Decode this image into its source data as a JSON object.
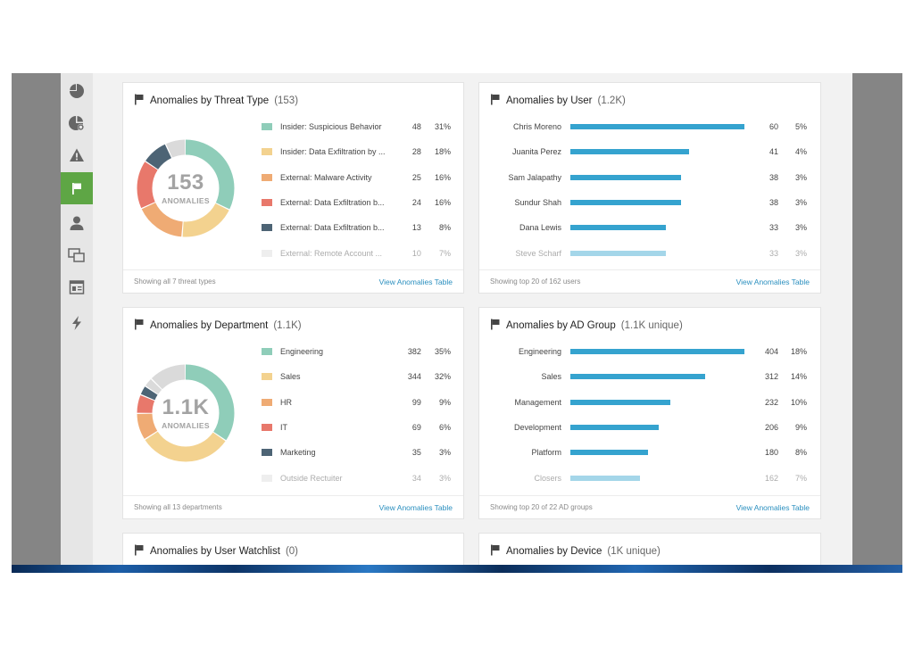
{
  "sidebar": {
    "items": [
      {
        "icon": "pie-chart-icon",
        "active": false
      },
      {
        "icon": "pie-settings-icon",
        "active": false
      },
      {
        "icon": "warning-icon",
        "active": false
      },
      {
        "icon": "flag-icon",
        "active": true
      },
      {
        "icon": "user-icon",
        "active": false
      },
      {
        "icon": "windows-icon",
        "active": false
      },
      {
        "icon": "report-icon",
        "active": false
      },
      {
        "icon": "lightning-icon",
        "active": false
      }
    ],
    "active_color": "#5ea645"
  },
  "cards": {
    "threat": {
      "title": "Anomalies by Threat Type",
      "count": "(153)",
      "center_value": "153",
      "center_label": "ANOMALIES",
      "rows": [
        {
          "label": "Insider: Suspicious Behavior",
          "value": "48",
          "pct": "31%",
          "color": "#8fcdb9"
        },
        {
          "label": "Insider: Data Exfiltration by ...",
          "value": "28",
          "pct": "18%",
          "color": "#f3d28f"
        },
        {
          "label": "External: Malware Activity",
          "value": "25",
          "pct": "16%",
          "color": "#efab74"
        },
        {
          "label": "External: Data Exfiltration b...",
          "value": "24",
          "pct": "16%",
          "color": "#e8786b"
        },
        {
          "label": "External: Data Exfiltration b...",
          "value": "13",
          "pct": "8%",
          "color": "#4d6475"
        },
        {
          "label": "External: Remote Account ...",
          "value": "10",
          "pct": "7%",
          "color": "#dadada"
        }
      ],
      "footer": "Showing all 7 threat types",
      "link": "View Anomalies Table"
    },
    "user": {
      "title": "Anomalies by User",
      "count": "(1.2K)",
      "rows": [
        {
          "label": "Chris Moreno",
          "value": "60",
          "pct": "5%"
        },
        {
          "label": "Juanita Perez",
          "value": "41",
          "pct": "4%"
        },
        {
          "label": "Sam Jalapathy",
          "value": "38",
          "pct": "3%"
        },
        {
          "label": "Sundur Shah",
          "value": "38",
          "pct": "3%"
        },
        {
          "label": "Dana Lewis",
          "value": "33",
          "pct": "3%"
        },
        {
          "label": "Steve Scharf",
          "value": "33",
          "pct": "3%"
        }
      ],
      "bar_color": "#35a3cf",
      "footer": "Showing top 20 of 162 users",
      "link": "View Anomalies Table"
    },
    "department": {
      "title": "Anomalies by Department",
      "count": "(1.1K)",
      "center_value": "1.1K",
      "center_label": "ANOMALIES",
      "rows": [
        {
          "label": "Engineering",
          "value": "382",
          "pct": "35%",
          "color": "#8fcdb9"
        },
        {
          "label": "Sales",
          "value": "344",
          "pct": "32%",
          "color": "#f3d28f"
        },
        {
          "label": "HR",
          "value": "99",
          "pct": "9%",
          "color": "#efab74"
        },
        {
          "label": "IT",
          "value": "69",
          "pct": "6%",
          "color": "#e8786b"
        },
        {
          "label": "Marketing",
          "value": "35",
          "pct": "3%",
          "color": "#4d6475"
        },
        {
          "label": "Outside Rectuiter",
          "value": "34",
          "pct": "3%",
          "color": "#dadada"
        }
      ],
      "remainder_color": "#dadada",
      "footer": "Showing all 13 departments",
      "link": "View Anomalies Table"
    },
    "adgroup": {
      "title": "Anomalies by AD Group",
      "count": "(1.1K unique)",
      "rows": [
        {
          "label": "Engineering",
          "value": "404",
          "pct": "18%"
        },
        {
          "label": "Sales",
          "value": "312",
          "pct": "14%"
        },
        {
          "label": "Management",
          "value": "232",
          "pct": "10%"
        },
        {
          "label": "Development",
          "value": "206",
          "pct": "9%"
        },
        {
          "label": "Platform",
          "value": "180",
          "pct": "8%"
        },
        {
          "label": "Closers",
          "value": "162",
          "pct": "7%"
        }
      ],
      "bar_color": "#35a3cf",
      "footer": "Showing top 20 of 22 AD groups",
      "link": "View Anomalies Table"
    },
    "watchlist": {
      "title": "Anomalies by User Watchlist",
      "count": "(0)"
    },
    "device": {
      "title": "Anomalies by Device",
      "count": "(1K unique)"
    }
  }
}
